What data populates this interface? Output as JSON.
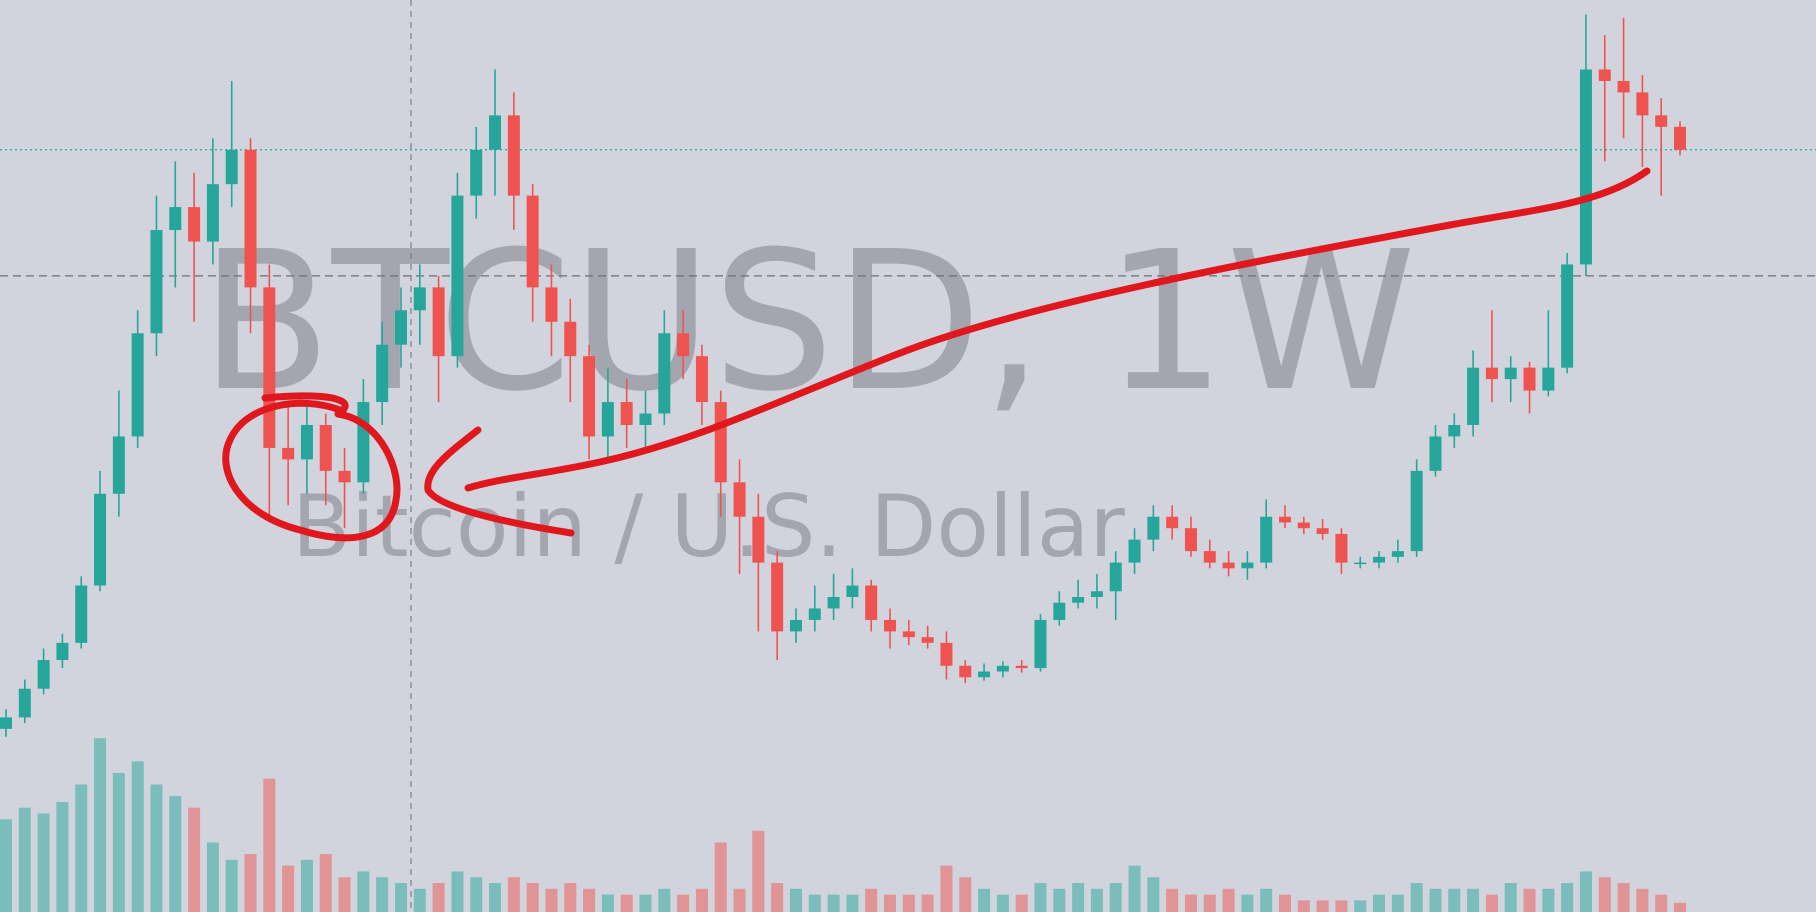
{
  "chart_data": {
    "type": "candlestick",
    "title": "BTCUSD, 1W",
    "subtitle": "Bitcoin / U.S. Dollar",
    "open": [
      11500,
      12500,
      15000,
      17500,
      19000,
      24000,
      32000,
      37000,
      46000,
      55000,
      57000,
      54000,
      59000,
      62000,
      50000,
      36000,
      35000,
      38000,
      34000,
      33000,
      40000,
      45000,
      48000,
      50000,
      44000,
      58000,
      62000,
      65000,
      58000,
      50000,
      47000,
      44000,
      37000,
      40000,
      38000,
      39000,
      46000,
      44000,
      40000,
      33000,
      30000,
      26000,
      20000,
      21000,
      22000,
      23000,
      24000,
      21000,
      20000,
      19500,
      19000,
      17000,
      16000,
      16500,
      17000,
      16800,
      21000,
      22500,
      23000,
      23500,
      26000,
      28000,
      30000,
      29000,
      27000,
      26000,
      25500,
      26000,
      30000,
      29500,
      29000,
      28500,
      26000,
      26000,
      26500,
      27000,
      34000,
      37000,
      38000,
      43000,
      42000,
      43000,
      41000,
      43000,
      52000,
      69000,
      68000,
      67000,
      65000,
      64000
    ],
    "high": [
      13200,
      15800,
      18500,
      19800,
      24800,
      34000,
      41000,
      48000,
      58000,
      61000,
      60000,
      63000,
      68000,
      63000,
      52000,
      40000,
      40000,
      39000,
      36000,
      42000,
      47000,
      50000,
      52000,
      51000,
      60000,
      64000,
      69000,
      67000,
      59000,
      52000,
      49000,
      45000,
      43000,
      42000,
      41000,
      48000,
      48000,
      45000,
      41000,
      35000,
      32000,
      27000,
      22000,
      24000,
      25000,
      25500,
      24500,
      22000,
      21000,
      20500,
      20000,
      17500,
      17200,
      17400,
      17500,
      21500,
      23500,
      24500,
      25000,
      27000,
      29000,
      31000,
      31000,
      30000,
      28000,
      27000,
      27000,
      31500,
      31000,
      30000,
      29800,
      29000,
      26500,
      27000,
      28000,
      35000,
      38000,
      39000,
      44500,
      48000,
      44000,
      43500,
      48000,
      53000,
      73800,
      72000,
      73500,
      68500,
      66500,
      64500
    ],
    "low": [
      10800,
      12000,
      14500,
      16800,
      18500,
      23500,
      30000,
      36000,
      44000,
      50000,
      47000,
      52000,
      57000,
      46000,
      30000,
      31000,
      32000,
      31000,
      29000,
      32000,
      38000,
      43000,
      45000,
      40000,
      43000,
      56000,
      58000,
      55000,
      47000,
      44000,
      40000,
      35000,
      35000,
      36000,
      36000,
      38000,
      42000,
      38000,
      30000,
      25000,
      20000,
      17500,
      19000,
      20000,
      21000,
      22000,
      20000,
      18500,
      18800,
      18500,
      15800,
      15500,
      15700,
      16000,
      16400,
      16500,
      20500,
      22000,
      22000,
      21000,
      25000,
      27000,
      28000,
      26500,
      25500,
      24800,
      24500,
      25500,
      29000,
      28500,
      28000,
      25000,
      25500,
      25500,
      26000,
      26500,
      33500,
      36000,
      37000,
      40000,
      40000,
      39000,
      40500,
      42500,
      51000,
      61000,
      63000,
      60500,
      58000,
      61500
    ],
    "close": [
      12500,
      15000,
      17500,
      19000,
      24000,
      32000,
      37000,
      46000,
      55000,
      57000,
      54000,
      59000,
      62000,
      50000,
      36000,
      35000,
      38000,
      34000,
      33000,
      40000,
      45000,
      48000,
      50000,
      44000,
      58000,
      62000,
      65000,
      58000,
      50000,
      47000,
      44000,
      37000,
      40000,
      38000,
      39000,
      46000,
      44000,
      40000,
      33000,
      30000,
      26000,
      20000,
      21000,
      22000,
      23000,
      24000,
      21000,
      20000,
      19500,
      19000,
      17000,
      16000,
      16500,
      17000,
      16800,
      21000,
      22500,
      23000,
      23500,
      26000,
      28000,
      30000,
      29000,
      27000,
      26000,
      25500,
      26000,
      30000,
      29500,
      29000,
      28500,
      26000,
      26000,
      26500,
      27000,
      34000,
      37000,
      38000,
      43000,
      42000,
      43000,
      41000,
      43000,
      52000,
      69000,
      68000,
      67000,
      65000,
      64000,
      62000
    ],
    "volume": [
      80,
      90,
      85,
      95,
      110,
      150,
      120,
      130,
      110,
      100,
      90,
      60,
      45,
      50,
      115,
      40,
      45,
      50,
      30,
      35,
      30,
      25,
      20,
      25,
      35,
      30,
      25,
      30,
      25,
      20,
      25,
      20,
      15,
      15,
      15,
      20,
      15,
      20,
      60,
      20,
      70,
      25,
      20,
      15,
      15,
      15,
      20,
      15,
      15,
      15,
      40,
      30,
      20,
      15,
      15,
      25,
      20,
      25,
      20,
      25,
      40,
      30,
      20,
      15,
      15,
      20,
      15,
      20,
      15,
      10,
      10,
      10,
      10,
      15,
      15,
      25,
      20,
      20,
      20,
      15,
      25,
      20,
      20,
      25,
      35,
      30,
      25,
      20,
      15,
      8
    ],
    "ylim": [
      -4470,
      75060
    ],
    "vlim": [
      0,
      787
    ],
    "up_color": "#26a69a",
    "down_color": "#ef5350",
    "price_line": 62000,
    "crosshair_price": 51000
  }
}
